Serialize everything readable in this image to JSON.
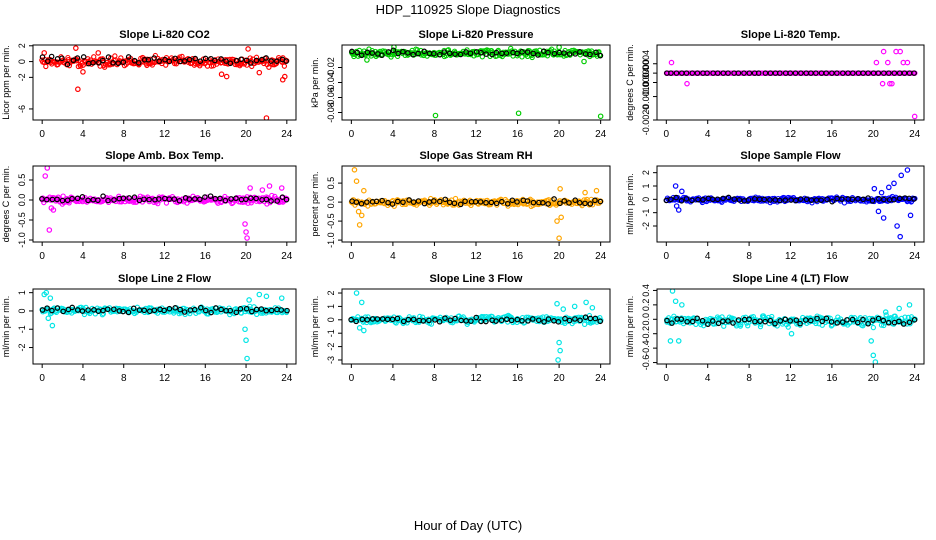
{
  "figure": {
    "title": "HDP_110925  Slope Diagnostics",
    "xlabel": "Hour of Day (UTC)"
  },
  "colors": {
    "frame": "#000000",
    "overlay": "#000000"
  },
  "chart_data": [
    {
      "type": "scatter",
      "title": "Slope Li-820 CO2",
      "ylabel": "Licor ppm per min.",
      "color": "#ff0000",
      "xlim": [
        -0.9,
        24.9
      ],
      "ylim": [
        -7.4,
        2.1
      ],
      "xticks": [
        0,
        4,
        8,
        12,
        16,
        20,
        24
      ],
      "yticks": [
        2,
        0,
        -2,
        -6
      ],
      "ytick_labels": [
        "2",
        "0",
        "-2",
        "-6"
      ],
      "band": [
        -0.9,
        0.9
      ],
      "baseline": 0.1,
      "outliers": [
        [
          0.2,
          1.1
        ],
        [
          3.3,
          1.7
        ],
        [
          3.5,
          -3.5
        ],
        [
          4.0,
          -1.3
        ],
        [
          5.5,
          1.1
        ],
        [
          17.6,
          -1.6
        ],
        [
          18.1,
          -1.9
        ],
        [
          20.2,
          1.6
        ],
        [
          21.3,
          -1.4
        ],
        [
          22.0,
          -7.2
        ],
        [
          23.6,
          -2.3
        ],
        [
          23.8,
          -1.9
        ]
      ]
    },
    {
      "type": "scatter",
      "title": "Slope Li-820 Pressure",
      "ylabel": "kPa per min.",
      "color": "#00cc00",
      "xlim": [
        -0.9,
        24.9
      ],
      "ylim": [
        -0.09,
        0.01
      ],
      "xticks": [
        0,
        4,
        8,
        12,
        16,
        20,
        24
      ],
      "yticks": [
        -0.02,
        -0.04,
        -0.06,
        -0.08
      ],
      "ytick_labels": [
        "-0.02",
        "-0.04",
        "-0.06",
        "-0.08"
      ],
      "band": [
        -0.008,
        0.006
      ],
      "baseline": -0.001,
      "outliers": [
        [
          1.5,
          -0.01
        ],
        [
          4.1,
          0.008
        ],
        [
          8.1,
          -0.084
        ],
        [
          16.1,
          -0.081
        ],
        [
          20.0,
          0.007
        ],
        [
          24.0,
          -0.085
        ],
        [
          22.4,
          -0.012
        ]
      ]
    },
    {
      "type": "scatter",
      "title": "Slope Li-820 Temp.",
      "ylabel": "degrees C per min.",
      "color": "#ff00ff",
      "xlim": [
        -0.9,
        24.9
      ],
      "ylim": [
        -0.002,
        0.0012
      ],
      "xticks": [
        0,
        4,
        8,
        12,
        16,
        20,
        24
      ],
      "yticks": [
        0.0004,
        0.0,
        -0.0004,
        -0.001,
        -0.002
      ],
      "ytick_labels": [
        "0.0004",
        "0.0000",
        "-0.0004",
        "-0.0010",
        "-0.0020"
      ],
      "band": [
        0.0,
        0.0
      ],
      "baseline": 0.0,
      "outliers": [
        [
          0.5,
          0.00045
        ],
        [
          2.0,
          -0.00045
        ],
        [
          20.3,
          0.00045
        ],
        [
          20.9,
          -0.00045
        ],
        [
          21.4,
          0.00045
        ],
        [
          21.8,
          -0.00045
        ],
        [
          22.2,
          0.00092
        ],
        [
          22.6,
          0.00092
        ],
        [
          22.9,
          0.00045
        ],
        [
          23.3,
          0.00045
        ],
        [
          21.0,
          0.00092
        ],
        [
          21.6,
          -0.00045
        ],
        [
          24.0,
          -0.00185
        ]
      ]
    },
    {
      "type": "scatter",
      "title": "Slope Amb. Box Temp.",
      "ylabel": "degrees C per min.",
      "color": "#ff00ff",
      "xlim": [
        -0.9,
        24.9
      ],
      "ylim": [
        -1.05,
        0.85
      ],
      "xticks": [
        0,
        4,
        8,
        12,
        16,
        20,
        24
      ],
      "yticks": [
        0.5,
        0.0,
        -0.5,
        -1.0
      ],
      "ytick_labels": [
        "0.5",
        "0.0",
        "-0.5",
        "-1.0"
      ],
      "band": [
        -0.12,
        0.13
      ],
      "baseline": 0.02,
      "outliers": [
        [
          0.3,
          0.6
        ],
        [
          0.5,
          0.8
        ],
        [
          0.9,
          -0.2
        ],
        [
          1.1,
          -0.25
        ],
        [
          0.7,
          -0.75
        ],
        [
          19.9,
          -0.6
        ],
        [
          20.0,
          -0.8
        ],
        [
          20.1,
          -0.95
        ],
        [
          21.6,
          0.25
        ],
        [
          22.3,
          0.35
        ],
        [
          23.5,
          0.3
        ],
        [
          20.4,
          0.3
        ]
      ]
    },
    {
      "type": "scatter",
      "title": "Slope Gas Stream RH",
      "ylabel": "percent per min.",
      "color": "#ffa500",
      "xlim": [
        -0.9,
        24.9
      ],
      "ylim": [
        -1.05,
        0.95
      ],
      "xticks": [
        0,
        4,
        8,
        12,
        16,
        20,
        24
      ],
      "yticks": [
        0.5,
        0.0,
        -0.5,
        -1.0
      ],
      "ytick_labels": [
        "0.5",
        "0.0",
        "-0.5",
        "-1.0"
      ],
      "band": [
        -0.13,
        0.12
      ],
      "baseline": 0.01,
      "outliers": [
        [
          0.3,
          0.85
        ],
        [
          0.5,
          0.55
        ],
        [
          0.7,
          -0.25
        ],
        [
          1.0,
          -0.35
        ],
        [
          1.2,
          0.3
        ],
        [
          0.8,
          -0.6
        ],
        [
          19.8,
          -0.5
        ],
        [
          20.0,
          -0.95
        ],
        [
          20.2,
          -0.4
        ],
        [
          20.1,
          0.35
        ],
        [
          23.6,
          0.3
        ],
        [
          22.5,
          0.25
        ]
      ]
    },
    {
      "type": "scatter",
      "title": "Slope Sample Flow",
      "ylabel": "ml/min per min.",
      "color": "#0000ff",
      "xlim": [
        -0.9,
        24.9
      ],
      "ylim": [
        -3.2,
        2.5
      ],
      "xticks": [
        0,
        4,
        8,
        12,
        16,
        20,
        24
      ],
      "yticks": [
        2,
        1,
        0,
        -1,
        -2
      ],
      "ytick_labels": [
        "2",
        "1",
        "0",
        "-1",
        "-2"
      ],
      "band": [
        -0.3,
        0.25
      ],
      "baseline": 0.0,
      "outliers": [
        [
          0.9,
          1.0
        ],
        [
          1.2,
          -0.8
        ],
        [
          1.5,
          0.6
        ],
        [
          1.0,
          -0.5
        ],
        [
          20.1,
          0.8
        ],
        [
          20.5,
          -0.9
        ],
        [
          21.0,
          -1.4
        ],
        [
          21.5,
          0.9
        ],
        [
          22.0,
          1.2
        ],
        [
          22.3,
          -2.0
        ],
        [
          22.7,
          1.8
        ],
        [
          22.6,
          -2.8
        ],
        [
          23.3,
          2.2
        ],
        [
          23.6,
          -1.2
        ],
        [
          20.8,
          0.5
        ]
      ]
    },
    {
      "type": "scatter",
      "title": "Slope Line 2 Flow",
      "ylabel": "ml/min per min.",
      "color": "#00e5e5",
      "xlim": [
        -0.9,
        24.9
      ],
      "ylim": [
        -2.9,
        1.2
      ],
      "xticks": [
        0,
        4,
        8,
        12,
        16,
        20,
        24
      ],
      "yticks": [
        1,
        0,
        -1,
        -2
      ],
      "ytick_labels": [
        "1",
        "0",
        "-1",
        "-2"
      ],
      "band": [
        -0.25,
        0.3
      ],
      "baseline": 0.05,
      "outliers": [
        [
          0.2,
          0.9
        ],
        [
          0.4,
          1.0
        ],
        [
          0.6,
          -0.4
        ],
        [
          1.0,
          -0.8
        ],
        [
          0.8,
          0.7
        ],
        [
          19.9,
          -1.0
        ],
        [
          20.0,
          -1.6
        ],
        [
          20.1,
          -2.6
        ],
        [
          21.3,
          0.9
        ],
        [
          22.0,
          0.8
        ],
        [
          23.5,
          0.7
        ],
        [
          20.3,
          0.6
        ]
      ]
    },
    {
      "type": "scatter",
      "title": "Slope Line 3 Flow",
      "ylabel": "ml/min per min.",
      "color": "#00e5e5",
      "xlim": [
        -0.9,
        24.9
      ],
      "ylim": [
        -3.3,
        2.3
      ],
      "xticks": [
        0,
        4,
        8,
        12,
        16,
        20,
        24
      ],
      "yticks": [
        2,
        1,
        0,
        -1,
        -2,
        -3
      ],
      "ytick_labels": [
        "2",
        "1",
        "0",
        "-1",
        "-2",
        "-3"
      ],
      "band": [
        -0.4,
        0.4
      ],
      "baseline": 0.0,
      "outliers": [
        [
          0.5,
          2.0
        ],
        [
          1.0,
          1.3
        ],
        [
          0.8,
          -0.6
        ],
        [
          1.2,
          -0.8
        ],
        [
          19.8,
          1.2
        ],
        [
          20.0,
          -1.7
        ],
        [
          20.1,
          -2.3
        ],
        [
          19.9,
          -3.0
        ],
        [
          21.5,
          1.0
        ],
        [
          22.6,
          1.3
        ],
        [
          23.2,
          0.9
        ],
        [
          20.4,
          0.8
        ]
      ]
    },
    {
      "type": "scatter",
      "title": "Slope Line 4 (LT) Flow",
      "ylabel": "ml/min per min.",
      "color": "#00e5e5",
      "xlim": [
        -0.9,
        24.9
      ],
      "ylim": [
        -0.62,
        0.42
      ],
      "xticks": [
        0,
        4,
        8,
        12,
        16,
        20,
        24
      ],
      "yticks": [
        0.4,
        0.2,
        0.0,
        -0.2,
        -0.4,
        -0.6
      ],
      "ytick_labels": [
        "0.4",
        "0.2",
        "0.0",
        "-0.2",
        "-0.4",
        "-0.6"
      ],
      "band": [
        -0.12,
        0.08
      ],
      "baseline": -0.02,
      "outliers": [
        [
          0.6,
          0.4
        ],
        [
          0.9,
          0.25
        ],
        [
          0.4,
          -0.3
        ],
        [
          1.2,
          -0.3
        ],
        [
          1.5,
          0.2
        ],
        [
          12.1,
          -0.2
        ],
        [
          19.8,
          -0.3
        ],
        [
          20.0,
          -0.5
        ],
        [
          20.2,
          -0.6
        ],
        [
          21.2,
          0.1
        ],
        [
          23.5,
          0.2
        ],
        [
          22.5,
          0.15
        ]
      ]
    }
  ]
}
